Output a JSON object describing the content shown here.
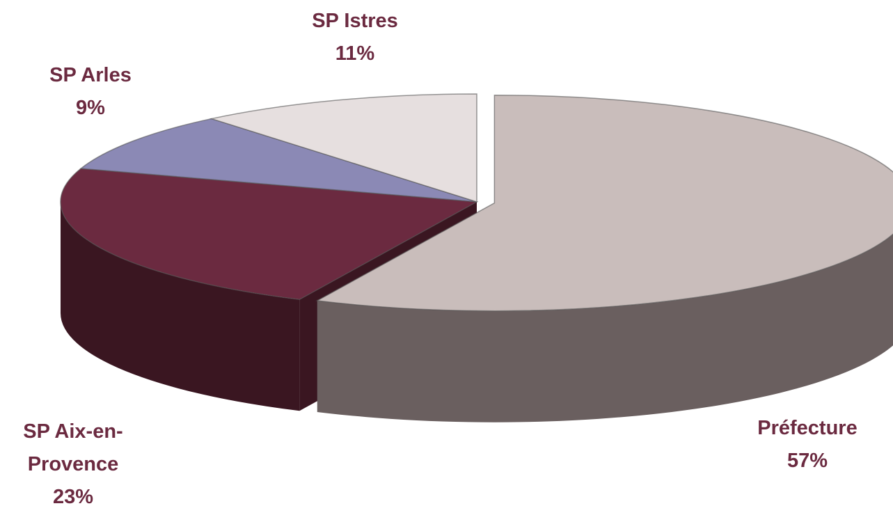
{
  "chart_data": {
    "type": "pie",
    "categories": [
      "Préfecture",
      "SP Aix-en-Provence",
      "SP Arles",
      "SP Istres"
    ],
    "values": [
      57,
      23,
      9,
      11
    ],
    "value_labels": [
      "57%",
      "23%",
      "9%",
      "11%"
    ],
    "colors": [
      "#c9bdbb",
      "#6b2a40",
      "#8b89b5",
      "#e6dfdf"
    ],
    "side_colors": [
      "#6a5f5f",
      "#3a1621",
      "#4a4870",
      "#9b9595"
    ]
  }
}
